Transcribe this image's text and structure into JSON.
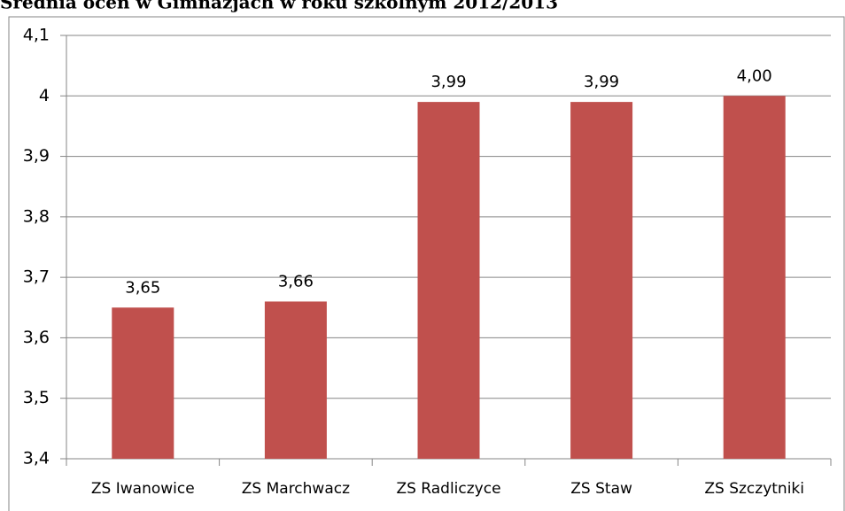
{
  "chart_data": {
    "type": "bar",
    "title": "Średnia ocen w Gimnazjach w roku szkolnym 2012/2013",
    "categories": [
      "ZS Iwanowice",
      "ZS Marchwacz",
      "ZS Radliczyce",
      "ZS Staw",
      "ZS Szczytniki"
    ],
    "values": [
      3.65,
      3.66,
      3.99,
      3.99,
      4.0
    ],
    "value_labels": [
      "3,65",
      "3,66",
      "3,99",
      "3,99",
      "4,00"
    ],
    "color": "#c0504d",
    "ylim": [
      3.4,
      4.1
    ],
    "yticks": [
      {
        "value": 3.4,
        "label": "3,4"
      },
      {
        "value": 3.5,
        "label": "3,5"
      },
      {
        "value": 3.6,
        "label": "3,6"
      },
      {
        "value": 3.7,
        "label": "3,7"
      },
      {
        "value": 3.8,
        "label": "3,8"
      },
      {
        "value": 3.9,
        "label": "3,9"
      },
      4,
      {
        "value": 4.1,
        "label": "4,1"
      }
    ],
    "grid": true
  }
}
